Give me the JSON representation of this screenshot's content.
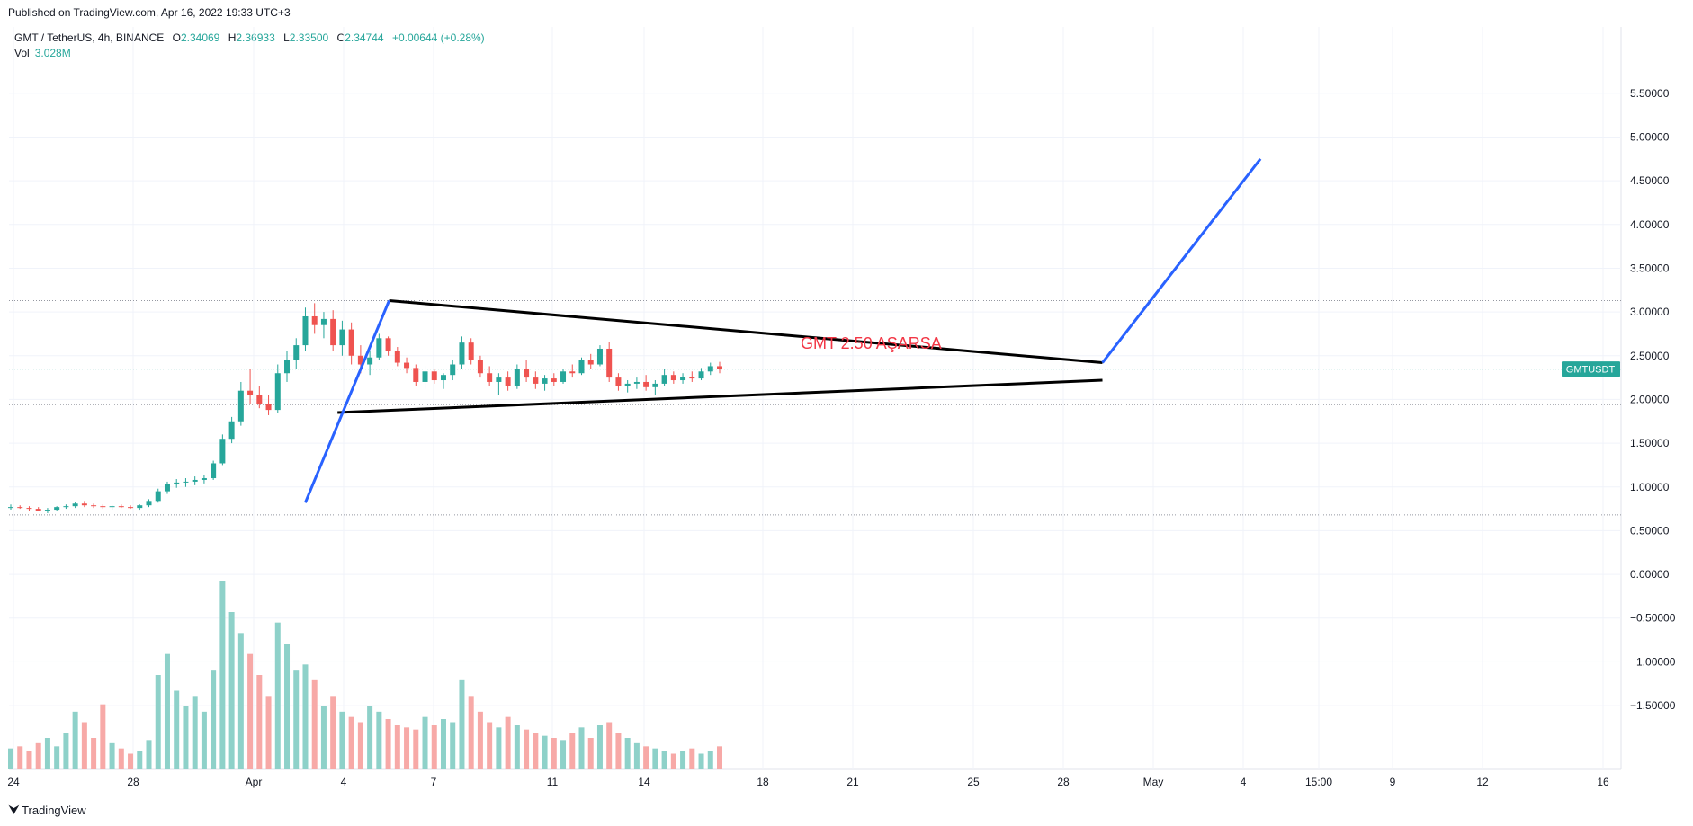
{
  "header": {
    "published": "Published on TradingView.com, Apr 16, 2022 19:33 UTC+3"
  },
  "legend": {
    "symbol": "GMT / TetherUS, 4h, BINANCE",
    "o_label": "O",
    "o_value": "2.34069",
    "h_label": "H",
    "h_value": "2.36933",
    "l_label": "L",
    "l_value": "2.33500",
    "c_label": "C",
    "c_value": "2.34744",
    "change": "+0.00644 (+0.28%)",
    "vol_label": "Vol",
    "vol_value": "3.028M"
  },
  "footer": {
    "brand": "TradingView"
  },
  "colors": {
    "up": "#26a69a",
    "down": "#ef5350",
    "vol_up": "#8ed1c9",
    "vol_down": "#f7a9a7",
    "trendline": "#000000",
    "projection": "#2962ff",
    "annotation": "#f23645",
    "badge": "#26a69a"
  },
  "chart_data": {
    "type": "candlestick",
    "y_axis_ticks": [
      "5.50000",
      "5.00000",
      "4.50000",
      "4.00000",
      "3.50000",
      "3.00000",
      "2.50000",
      "2.00000",
      "1.50000",
      "1.00000",
      "0.50000",
      "0.00000",
      "−0.50000",
      "−1.00000",
      "−1.50000"
    ],
    "y_axis_values": [
      5.5,
      5.0,
      4.5,
      4.0,
      3.5,
      3.0,
      2.5,
      2.0,
      1.5,
      1.0,
      0.5,
      0.0,
      -0.5,
      -1.0,
      -1.5
    ],
    "ylim": [
      -1.9,
      5.95
    ],
    "x_axis_ticks": [
      "24",
      "28",
      "Apr",
      "4",
      "7",
      "11",
      "14",
      "18",
      "21",
      "25",
      "28",
      "May",
      "4",
      "15:00",
      "9",
      "12",
      "16"
    ],
    "last_price_badge": "GMTUSDT",
    "last_price": 2.347,
    "horizontal_levels": [
      3.13,
      1.94,
      0.68,
      2.347
    ],
    "annotation": "GMT 2.50 AŞARSA",
    "candles": [
      [
        0.76,
        0.8,
        0.74,
        0.77
      ],
      [
        0.77,
        0.79,
        0.75,
        0.76
      ],
      [
        0.76,
        0.78,
        0.73,
        0.75
      ],
      [
        0.75,
        0.77,
        0.72,
        0.73
      ],
      [
        0.73,
        0.76,
        0.7,
        0.74
      ],
      [
        0.74,
        0.78,
        0.72,
        0.77
      ],
      [
        0.77,
        0.8,
        0.75,
        0.78
      ],
      [
        0.78,
        0.83,
        0.76,
        0.81
      ],
      [
        0.81,
        0.84,
        0.77,
        0.79
      ],
      [
        0.79,
        0.81,
        0.76,
        0.78
      ],
      [
        0.78,
        0.8,
        0.75,
        0.77
      ],
      [
        0.77,
        0.79,
        0.74,
        0.78
      ],
      [
        0.78,
        0.8,
        0.76,
        0.77
      ],
      [
        0.77,
        0.79,
        0.75,
        0.76
      ],
      [
        0.76,
        0.8,
        0.74,
        0.79
      ],
      [
        0.79,
        0.86,
        0.77,
        0.84
      ],
      [
        0.84,
        0.98,
        0.82,
        0.95
      ],
      [
        0.95,
        1.06,
        0.92,
        1.03
      ],
      [
        1.03,
        1.09,
        0.99,
        1.05
      ],
      [
        1.05,
        1.1,
        1.0,
        1.06
      ],
      [
        1.06,
        1.12,
        1.02,
        1.08
      ],
      [
        1.08,
        1.14,
        1.04,
        1.1
      ],
      [
        1.1,
        1.3,
        1.08,
        1.27
      ],
      [
        1.27,
        1.6,
        1.25,
        1.55
      ],
      [
        1.55,
        1.8,
        1.5,
        1.75
      ],
      [
        1.75,
        2.2,
        1.7,
        2.1
      ],
      [
        2.1,
        2.35,
        1.95,
        2.05
      ],
      [
        2.05,
        2.15,
        1.9,
        1.95
      ],
      [
        1.95,
        2.05,
        1.82,
        1.88
      ],
      [
        1.88,
        2.4,
        1.85,
        2.3
      ],
      [
        2.3,
        2.55,
        2.2,
        2.45
      ],
      [
        2.45,
        2.7,
        2.35,
        2.62
      ],
      [
        2.62,
        3.05,
        2.55,
        2.95
      ],
      [
        2.95,
        3.1,
        2.75,
        2.85
      ],
      [
        2.85,
        3.0,
        2.7,
        2.92
      ],
      [
        2.92,
        3.02,
        2.55,
        2.62
      ],
      [
        2.62,
        2.9,
        2.5,
        2.8
      ],
      [
        2.8,
        2.88,
        2.4,
        2.5
      ],
      [
        2.5,
        2.62,
        2.3,
        2.4
      ],
      [
        2.4,
        2.55,
        2.28,
        2.48
      ],
      [
        2.48,
        2.75,
        2.45,
        2.7
      ],
      [
        2.7,
        2.72,
        2.5,
        2.55
      ],
      [
        2.55,
        2.6,
        2.38,
        2.42
      ],
      [
        2.42,
        2.48,
        2.3,
        2.36
      ],
      [
        2.36,
        2.4,
        2.15,
        2.2
      ],
      [
        2.2,
        2.38,
        2.12,
        2.32
      ],
      [
        2.32,
        2.35,
        2.18,
        2.22
      ],
      [
        2.22,
        2.3,
        2.12,
        2.28
      ],
      [
        2.28,
        2.45,
        2.22,
        2.4
      ],
      [
        2.4,
        2.72,
        2.35,
        2.65
      ],
      [
        2.65,
        2.7,
        2.4,
        2.45
      ],
      [
        2.45,
        2.5,
        2.25,
        2.3
      ],
      [
        2.3,
        2.38,
        2.15,
        2.2
      ],
      [
        2.2,
        2.3,
        2.05,
        2.25
      ],
      [
        2.25,
        2.32,
        2.1,
        2.15
      ],
      [
        2.15,
        2.4,
        2.12,
        2.35
      ],
      [
        2.35,
        2.45,
        2.2,
        2.25
      ],
      [
        2.25,
        2.32,
        2.12,
        2.18
      ],
      [
        2.18,
        2.28,
        2.1,
        2.24
      ],
      [
        2.24,
        2.3,
        2.15,
        2.2
      ],
      [
        2.2,
        2.35,
        2.18,
        2.32
      ],
      [
        2.32,
        2.4,
        2.25,
        2.3
      ],
      [
        2.3,
        2.48,
        2.28,
        2.45
      ],
      [
        2.45,
        2.52,
        2.35,
        2.4
      ],
      [
        2.4,
        2.62,
        2.38,
        2.58
      ],
      [
        2.58,
        2.66,
        2.2,
        2.25
      ],
      [
        2.25,
        2.3,
        2.1,
        2.15
      ],
      [
        2.15,
        2.22,
        2.08,
        2.18
      ],
      [
        2.18,
        2.25,
        2.12,
        2.2
      ],
      [
        2.2,
        2.28,
        2.1,
        2.14
      ],
      [
        2.14,
        2.22,
        2.05,
        2.18
      ],
      [
        2.18,
        2.35,
        2.15,
        2.28
      ],
      [
        2.28,
        2.32,
        2.18,
        2.22
      ],
      [
        2.22,
        2.3,
        2.18,
        2.26
      ],
      [
        2.26,
        2.32,
        2.2,
        2.24
      ],
      [
        2.24,
        2.36,
        2.22,
        2.32
      ],
      [
        2.32,
        2.42,
        2.28,
        2.38
      ],
      [
        2.38,
        2.43,
        2.3,
        2.35
      ]
    ],
    "volumes": [
      0.2,
      0.22,
      0.18,
      0.25,
      0.3,
      0.22,
      0.35,
      0.55,
      0.45,
      0.3,
      0.62,
      0.25,
      0.2,
      0.15,
      0.18,
      0.28,
      0.9,
      1.1,
      0.75,
      0.6,
      0.7,
      0.55,
      0.95,
      1.8,
      1.5,
      1.3,
      1.1,
      0.9,
      0.7,
      1.4,
      1.2,
      0.95,
      1.0,
      0.85,
      0.6,
      0.7,
      0.55,
      0.5,
      0.45,
      0.6,
      0.55,
      0.48,
      0.42,
      0.4,
      0.38,
      0.5,
      0.42,
      0.48,
      0.45,
      0.85,
      0.7,
      0.55,
      0.45,
      0.4,
      0.5,
      0.42,
      0.38,
      0.35,
      0.32,
      0.3,
      0.28,
      0.35,
      0.4,
      0.3,
      0.42,
      0.45,
      0.35,
      0.3,
      0.25,
      0.22,
      0.2,
      0.18,
      0.15,
      0.18,
      0.2,
      0.15,
      0.18,
      0.22
    ],
    "trendlines": {
      "upper": {
        "from": [
          0.2358,
          3.13
        ],
        "to": [
          0.6783,
          2.42
        ]
      },
      "lower": {
        "from": [
          0.2038,
          1.85
        ],
        "to": [
          0.6783,
          2.22
        ]
      }
    },
    "projection_lines": [
      {
        "from": [
          0.1838,
          0.82
        ],
        "to": [
          0.2358,
          3.13
        ]
      },
      {
        "from": [
          0.6783,
          2.42
        ],
        "to": [
          0.7763,
          4.75
        ]
      }
    ]
  }
}
